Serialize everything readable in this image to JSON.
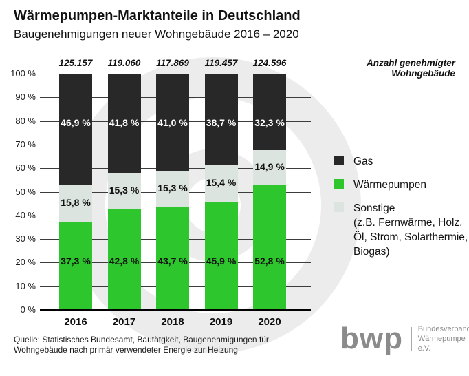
{
  "header": {
    "title": "Wärmepumpen-Marktanteile in Deutschland",
    "subtitle": "Baugenehmigungen neuer Wohngebäude 2016 – 2020"
  },
  "chart_data": {
    "type": "bar",
    "subtype": "stacked-100-percent",
    "categories": [
      "2016",
      "2017",
      "2018",
      "2019",
      "2020"
    ],
    "totals": [
      "125.157",
      "119.060",
      "117.869",
      "119.457",
      "124.596"
    ],
    "totals_note": "Anzahl genehmigter Wohngebäude",
    "series": [
      {
        "name": "Gas",
        "color": "#282828",
        "label_color": "#ffffff",
        "values": [
          46.9,
          41.8,
          41.0,
          38.7,
          32.3
        ],
        "labels": [
          "46,9 %",
          "41,8 %",
          "41,0 %",
          "38,7 %",
          "32,3 %"
        ]
      },
      {
        "name": "Wärmepumpen",
        "color": "#2dc72d",
        "label_color": "#111111",
        "values": [
          37.3,
          42.8,
          43.7,
          45.9,
          52.8
        ],
        "labels": [
          "37,3 %",
          "42,8 %",
          "43,7 %",
          "45,9 %",
          "52,8 %"
        ]
      },
      {
        "name": "Sonstige",
        "color": "#dce4e0",
        "label_color": "#111111",
        "values": [
          15.8,
          15.3,
          15.3,
          15.4,
          14.9
        ],
        "labels": [
          "15,8 %",
          "15,3 %",
          "15,3 %",
          "15,4 %",
          "14,9 %"
        ]
      }
    ],
    "stack_order_bottom_to_top": [
      "Wärmepumpen",
      "Sonstige",
      "Gas"
    ],
    "ylim": [
      0,
      100
    ],
    "ytick_labels": [
      "0 %",
      "10 %",
      "20 %",
      "30 %",
      "40 %",
      "50 %",
      "60 %",
      "70 %",
      "80 %",
      "90 %",
      "100 %"
    ],
    "grid": true,
    "legend_position": "right"
  },
  "legend": {
    "items": [
      {
        "label": "Gas",
        "color": "#282828",
        "sublabel": ""
      },
      {
        "label": "Wärmepumpen",
        "color": "#2dc72d",
        "sublabel": ""
      },
      {
        "label": "Sonstige",
        "color": "#dce4e0",
        "sublabel": "(z.B. Fernwärme, Holz,\nÖl, Strom, Solarthermie,\nBiogas)"
      }
    ]
  },
  "footer": {
    "source_line1": "Quelle: Statistisches Bundesamt, Bautätgkeit, Baugenehmigungen für",
    "source_line2": "Wohngebäude nach primär verwendeter Energie zur Heizung",
    "logo_text": "bwp",
    "logo_org_line1": "Bundesverband",
    "logo_org_line2": "Wärmepumpe e.V."
  }
}
